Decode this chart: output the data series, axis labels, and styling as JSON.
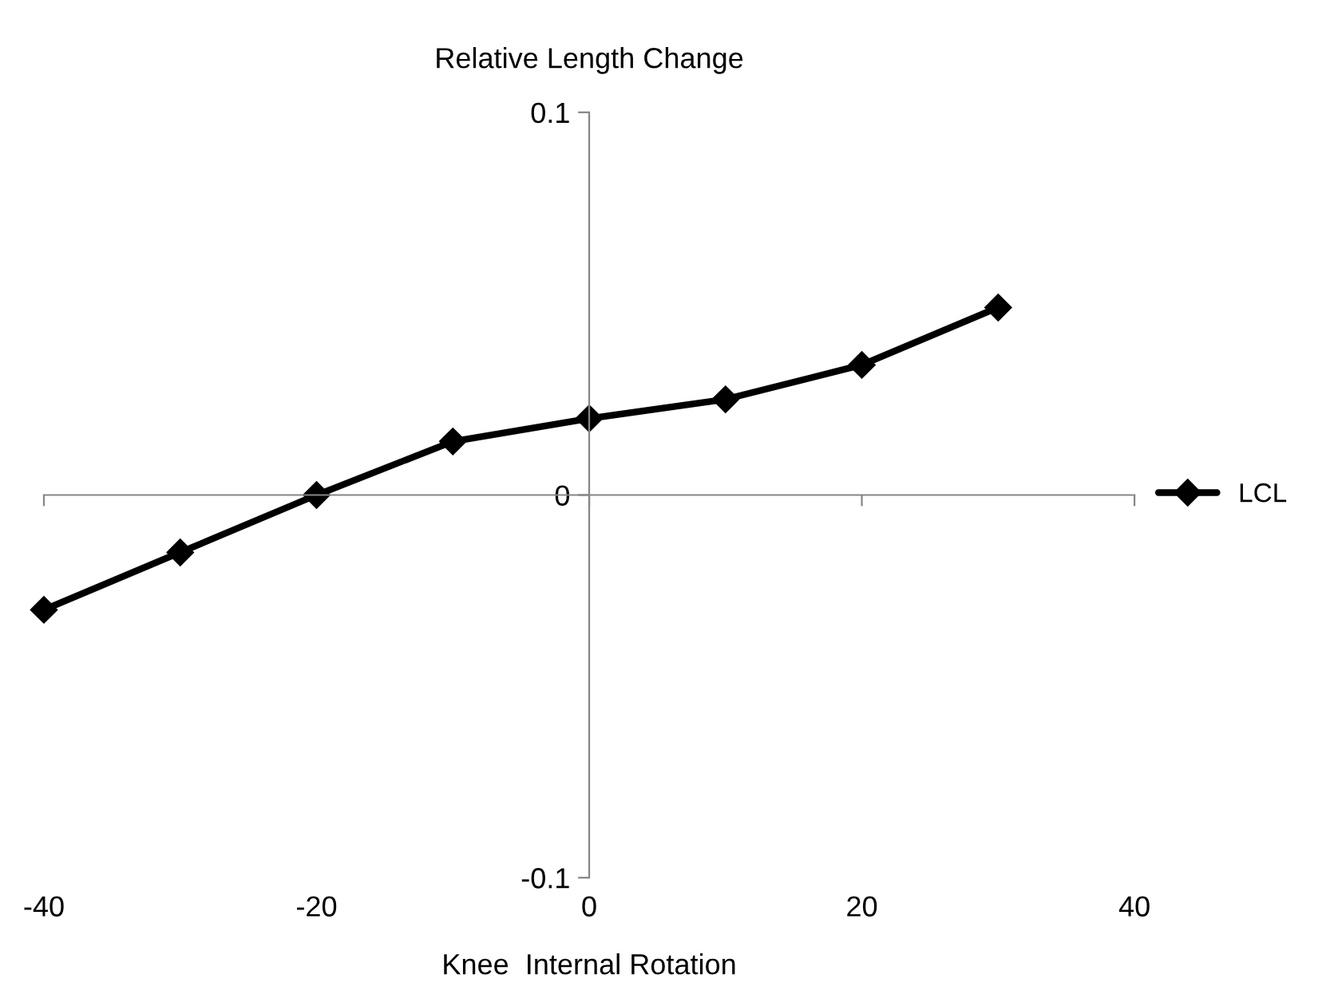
{
  "chart_data": {
    "type": "line",
    "title": "Relative Length Change",
    "xlabel": "Knee  Internal Rotation",
    "x": [
      -40,
      -30,
      -20,
      -10,
      0,
      10,
      20,
      30
    ],
    "series": [
      {
        "name": "LCL",
        "color": "#000000",
        "values": [
          -0.03,
          -0.015,
          0,
          0.014,
          0.02,
          0.025,
          0.034,
          0.049
        ]
      }
    ],
    "xlim": [
      -40,
      40
    ],
    "xticks": [
      -40,
      -20,
      0,
      20,
      40
    ],
    "ylim": [
      -0.1,
      0.1
    ],
    "yticks": [
      -0.1,
      0,
      0.1
    ],
    "legend": "right",
    "marker": "diamond",
    "line_style": "solid"
  }
}
